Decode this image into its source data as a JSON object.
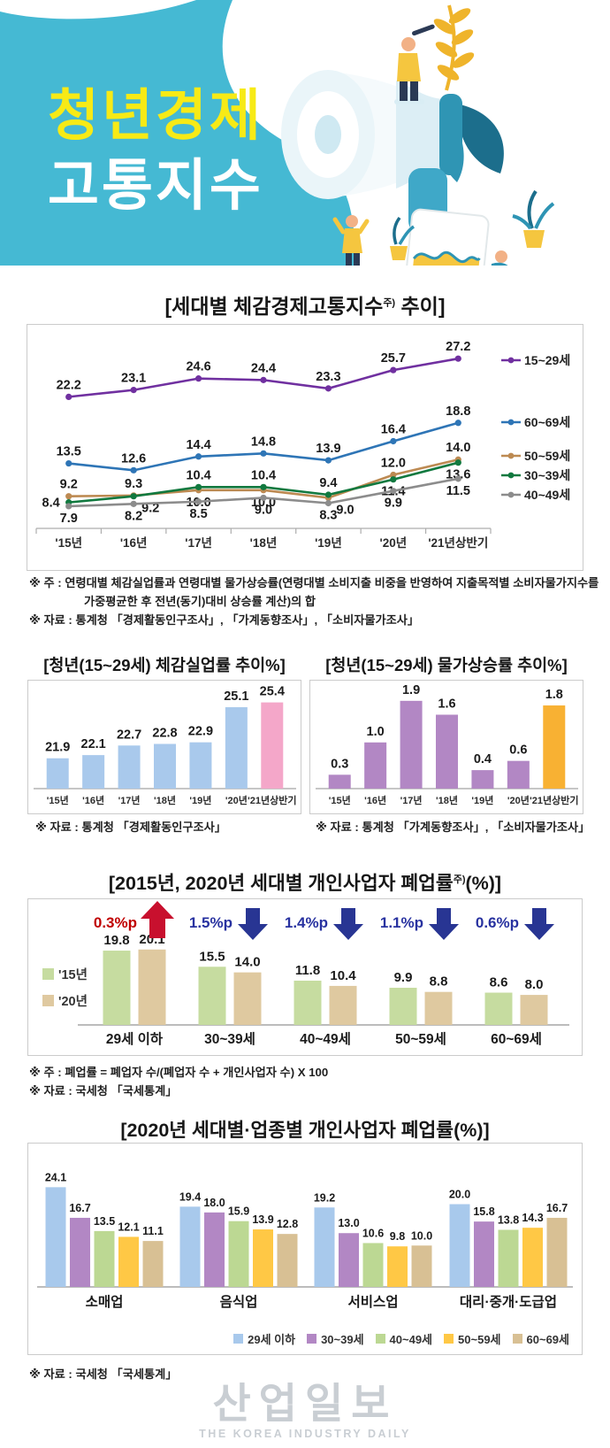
{
  "header": {
    "title_line1": "청년경제",
    "title_line2": "고통지수",
    "bg_color": "#45B9D3",
    "title1_color": "#F7EA16",
    "title2_color": "#FFFFFF"
  },
  "chart_data": [
    {
      "id": "chart1",
      "type": "line",
      "title_pre": "[세대별 체감경제고통지수",
      "title_sup": "주)",
      "title_post": " 추이]",
      "categories": [
        "'15년",
        "'16년",
        "'17년",
        "'18년",
        "'19년",
        "'20년",
        "'21년상반기"
      ],
      "series": [
        {
          "name": "15~29세",
          "color": "#7030A0",
          "values": [
            22.2,
            23.1,
            24.6,
            24.4,
            23.3,
            25.7,
            27.2
          ]
        },
        {
          "name": "60~69세",
          "color": "#2E75B6",
          "values": [
            13.5,
            12.6,
            14.4,
            14.8,
            13.9,
            16.4,
            18.8
          ]
        },
        {
          "name": "50~59세",
          "color": "#BD8A52",
          "values": [
            9.2,
            9.3,
            10.0,
            10.0,
            9.0,
            12.0,
            14.0
          ]
        },
        {
          "name": "30~39세",
          "color": "#11793F",
          "values": [
            8.4,
            9.2,
            10.4,
            10.4,
            9.4,
            11.4,
            13.6
          ]
        },
        {
          "name": "40~49세",
          "color": "#8C8C8C",
          "values": [
            7.9,
            8.2,
            8.5,
            9.0,
            8.3,
            9.9,
            11.5
          ]
        }
      ],
      "legend_position": "right",
      "grid": false
    },
    {
      "id": "chart2a",
      "type": "bar",
      "title": "[청년(15~29세) 체감실업률 추이%]",
      "categories": [
        "'15년",
        "'16년",
        "'17년",
        "'18년",
        "'19년",
        "'20년",
        "'21년상반기"
      ],
      "values": [
        21.9,
        22.1,
        22.7,
        22.8,
        22.9,
        25.1,
        25.4
      ],
      "colors": [
        "#A9C9EC",
        "#A9C9EC",
        "#A9C9EC",
        "#A9C9EC",
        "#A9C9EC",
        "#A9C9EC",
        "#F4A7C9"
      ]
    },
    {
      "id": "chart2b",
      "type": "bar",
      "title": "[청년(15~29세) 물가상승률 추이%]",
      "categories": [
        "'15년",
        "'16년",
        "'17년",
        "'18년",
        "'19년",
        "'20년",
        "'21년상반기"
      ],
      "values": [
        0.3,
        1.0,
        1.9,
        1.6,
        0.4,
        0.6,
        1.8
      ],
      "colors": [
        "#B287C4",
        "#B287C4",
        "#B287C4",
        "#B287C4",
        "#B287C4",
        "#B287C4",
        "#F8B133"
      ]
    },
    {
      "id": "chart3",
      "type": "grouped_bar",
      "title_pre": "[2015년, 2020년 세대별 개인사업자 폐업률",
      "title_sup": "주)",
      "title_post": "(%)]",
      "categories": [
        "29세 이하",
        "30~39세",
        "40~49세",
        "50~59세",
        "60~69세"
      ],
      "series": [
        {
          "name": "'15년",
          "color": "#C6DCA0",
          "values": [
            19.8,
            15.5,
            11.8,
            9.9,
            8.6
          ]
        },
        {
          "name": "'20년",
          "color": "#DFC9A0",
          "values": [
            20.1,
            14.0,
            10.4,
            8.8,
            8.0
          ]
        }
      ],
      "annotations": [
        {
          "text": "0.3%p",
          "direction": "up",
          "text_color": "#C00000",
          "arrow_color": "#C8102E"
        },
        {
          "text": "1.5%p",
          "direction": "down",
          "text_color": "#2832A0",
          "arrow_color": "#283593"
        },
        {
          "text": "1.4%p",
          "direction": "down",
          "text_color": "#2832A0",
          "arrow_color": "#283593"
        },
        {
          "text": "1.1%p",
          "direction": "down",
          "text_color": "#2832A0",
          "arrow_color": "#283593"
        },
        {
          "text": "0.6%p",
          "direction": "down",
          "text_color": "#2832A0",
          "arrow_color": "#283593"
        }
      ],
      "legend_position": "left"
    },
    {
      "id": "chart4",
      "type": "grouped_bar",
      "title": "[2020년 세대별·업종별 개인사업자 폐업률(%)]",
      "categories": [
        "소매업",
        "음식업",
        "서비스업",
        "대리·중개·도급업"
      ],
      "series": [
        {
          "name": "29세 이하",
          "color": "#A8C9EC",
          "values": [
            24.1,
            19.4,
            19.2,
            20.0
          ]
        },
        {
          "name": "30~39세",
          "color": "#B287C4",
          "values": [
            16.7,
            18.0,
            13.0,
            15.8
          ]
        },
        {
          "name": "40~49세",
          "color": "#BCD893",
          "values": [
            13.5,
            15.9,
            10.6,
            13.8
          ]
        },
        {
          "name": "50~59세",
          "color": "#FFC845",
          "values": [
            12.1,
            13.9,
            9.8,
            14.3
          ]
        },
        {
          "name": "60~69세",
          "color": "#D8C094",
          "values": [
            11.1,
            12.8,
            10.0,
            16.7
          ]
        }
      ],
      "legend_position": "bottom-right"
    }
  ],
  "notes": {
    "chart1": [
      "※ 주 : 연령대별 체감실업률과 연령대별 물가상승률(연령대별 소비지출 비중을 반영하여 지출목적별 소비자물가지수를",
      "가중평균한 후 전년(동기)대비 상승률 계산)의 합",
      "※ 자료 : 통계청 「경제활동인구조사」, 「가계동향조사」, 「소비자물가조사」"
    ],
    "chart2a": "※ 자료 : 통계청 「경제활동인구조사」",
    "chart2b": "※ 자료 : 통계청 「가계동향조사」, 「소비자물가조사」",
    "chart3": [
      "※ 주 : 폐업률 = 폐업자 수/(폐업자 수 + 개인사업자 수) X 100",
      "※ 자료 : 국세청 「국세통계」"
    ],
    "chart4": "※ 자료 : 국세청 「국세통계」"
  },
  "footer": {
    "logo_main": "산업일보",
    "logo_sub": "THE KOREA INDUSTRY DAILY"
  }
}
